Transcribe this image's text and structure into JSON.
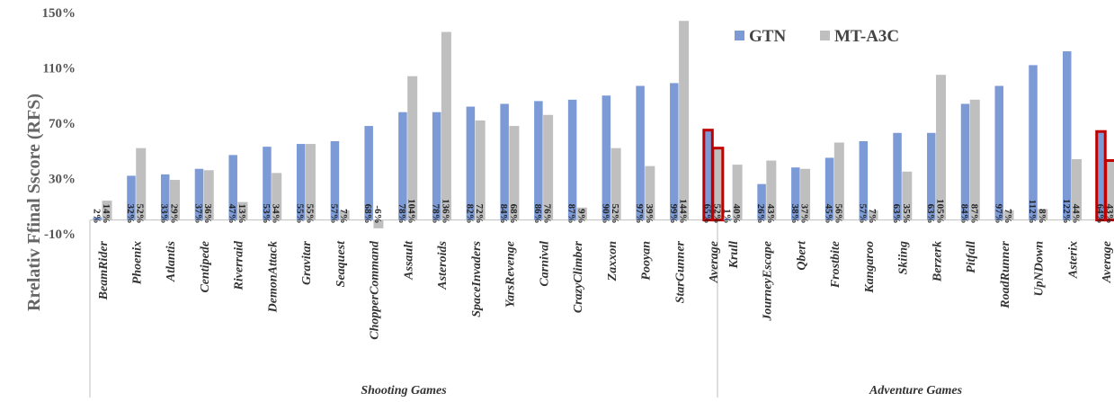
{
  "chart_data": {
    "type": "bar",
    "ylabel": "Rrelativ Ffinal Sscore (RFS)",
    "y_ticks": [
      "150%",
      "110%",
      "70%",
      "30%",
      "-10%"
    ],
    "ylim": [
      -10,
      150
    ],
    "grid": false,
    "legend_position": "top-right",
    "colors": {
      "GTN": "#7b9ad6",
      "MT-A3C": "#bfbfbf",
      "highlight": "#c00000"
    },
    "groups": [
      {
        "name": "Shooting Games",
        "categories": [
          "BeamRider",
          "Phoenix",
          "Atlantis",
          "Centipede",
          "Riverraid",
          "DemonAttack",
          "Gravitar",
          "Seaquest",
          "ChopperCommand",
          "Assault",
          "Asteroids",
          "SpaceInvaders",
          "YarsRevenge",
          "Carnival",
          "CrazyClimber",
          "Zaxxon",
          "Pooyan",
          "StarGunner",
          "Average"
        ],
        "series": [
          {
            "name": "GTN",
            "values": [
              2,
              32,
              33,
              37,
              47,
              53,
              55,
              57,
              68,
              78,
              78,
              82,
              84,
              86,
              87,
              90,
              97,
              99,
              65
            ],
            "labels": [
              "2%",
              "32%",
              "33%",
              "37%",
              "47%",
              "53%",
              "55%",
              "57%",
              "68%",
              "78%",
              "78%",
              "82%",
              "84%",
              "86%",
              "87%",
              "90%",
              "97%",
              "99%",
              "65%"
            ]
          },
          {
            "name": "MT-A3C",
            "values": [
              14,
              52,
              29,
              36,
              13,
              34,
              55,
              7,
              -6,
              104,
              136,
              72,
              68,
              76,
              9,
              52,
              39,
              144,
              52
            ],
            "labels": [
              "14%",
              "52%",
              "29%",
              "36%",
              "13%",
              "34%",
              "55%",
              "7%",
              "-6%",
              "104%",
              "136%",
              "72%",
              "68%",
              "76%",
              "9%",
              "52%",
              "39%",
              "144%",
              "52%"
            ]
          }
        ]
      },
      {
        "name": "Adventure Games",
        "categories": [
          "Krull",
          "JourneyEscape",
          "Qbert",
          "Frostbite",
          "Kangaroo",
          "Skiing",
          "Berzerk",
          "Pitfall",
          "RoadRunner",
          "UpNDown",
          "Asterix",
          "Average"
        ],
        "series": [
          {
            "name": "GTN",
            "values": [
              1,
              26,
              38,
              45,
              57,
              63,
              63,
              84,
              97,
              112,
              122,
              64
            ],
            "labels": [
              "1%",
              "26%",
              "38%",
              "45%",
              "57%",
              "63%",
              "63%",
              "84%",
              "97%",
              "112%",
              "122%",
              "64%"
            ]
          },
          {
            "name": "MT-A3C",
            "values": [
              40,
              43,
              37,
              56,
              7,
              35,
              105,
              87,
              7,
              8,
              44,
              43
            ],
            "labels": [
              "40%",
              "43%",
              "37%",
              "56%",
              "7%",
              "35%",
              "105%",
              "87%",
              "7%",
              "8%",
              "44%",
              "43%"
            ]
          }
        ]
      }
    ]
  }
}
